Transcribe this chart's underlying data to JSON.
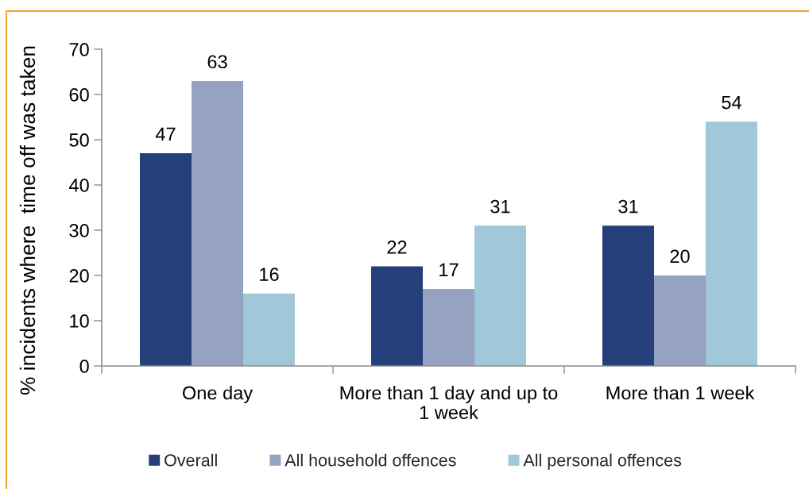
{
  "chart_data": {
    "type": "bar",
    "ylabel": "% incidents where  time off was taken",
    "categories": [
      "One day",
      "More than 1 day and up to\n1 week",
      "More than 1 week"
    ],
    "series": [
      {
        "name": "Overall",
        "color": "#253f7a",
        "values": [
          47,
          22,
          31
        ]
      },
      {
        "name": "All household offences",
        "color": "#95a2c1",
        "values": [
          63,
          17,
          20
        ]
      },
      {
        "name": "All personal offences",
        "color": "#a0c8d8",
        "values": [
          16,
          31,
          54
        ]
      }
    ],
    "ylim": [
      0,
      70
    ],
    "yticks": [
      0,
      10,
      20,
      30,
      40,
      50,
      60,
      70
    ],
    "data_labels": true,
    "grid": false,
    "legend": "bottom"
  }
}
